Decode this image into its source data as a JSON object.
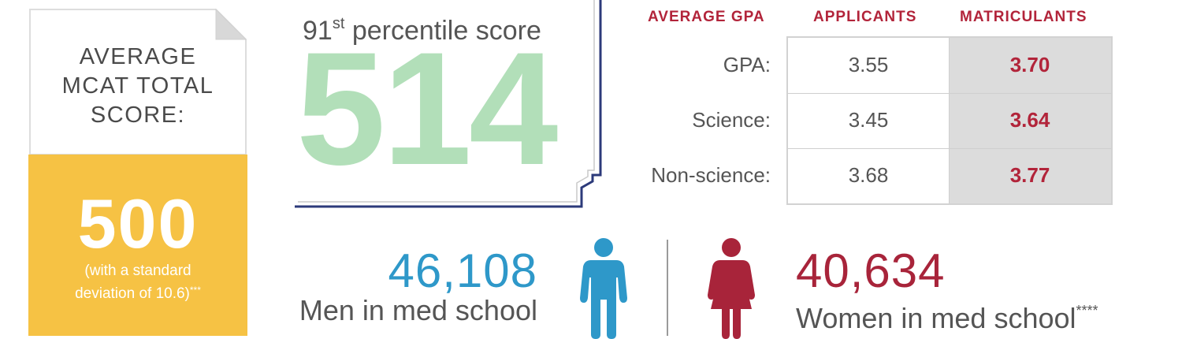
{
  "mcat": {
    "label_lines": [
      "AVERAGE",
      "MCAT TOTAL",
      "SCORE:"
    ],
    "score": "500",
    "note_lines": [
      "(with a standard",
      "deviation of 10.6)"
    ],
    "note_marker": "***",
    "card_color": "#f6c244"
  },
  "percentile": {
    "rank": "91",
    "rank_suffix": "st",
    "label": "percentile score",
    "score": "514",
    "score_color": "#b2dfb9",
    "frame_color": "#2c3a7a"
  },
  "gpa": {
    "headers": [
      "AVERAGE GPA",
      "APPLICANTS",
      "MATRICULANTS"
    ],
    "rows": [
      {
        "label": "GPA:",
        "applicants": "3.55",
        "matriculants": "3.70"
      },
      {
        "label": "Science:",
        "applicants": "3.45",
        "matriculants": "3.64"
      },
      {
        "label": "Non-science:",
        "applicants": "3.68",
        "matriculants": "3.77"
      }
    ],
    "accent_color": "#b2243a"
  },
  "demographics": {
    "men": {
      "count": "46,108",
      "label": "Men in med school",
      "color": "#2e98c9",
      "icon": "man-icon"
    },
    "women": {
      "count": "40,634",
      "label": "Women in med school",
      "marker": "****",
      "color": "#a8243a",
      "icon": "woman-icon"
    }
  }
}
